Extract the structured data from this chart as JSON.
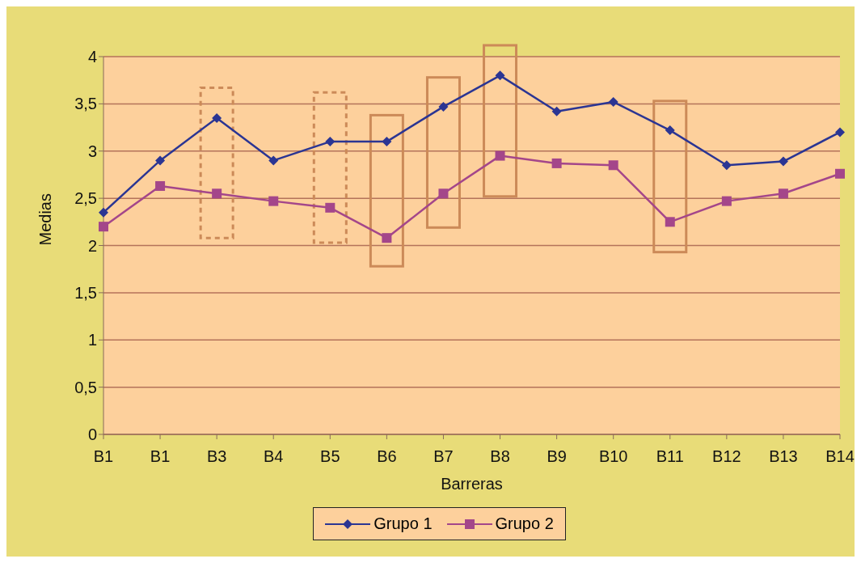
{
  "chart_data": {
    "type": "line",
    "xlabel": "Barreras",
    "ylabel": "Medias",
    "categories": [
      "B1",
      "B1",
      "B3",
      "B4",
      "B5",
      "B6",
      "B7",
      "B8",
      "B9",
      "B10",
      "B11",
      "B12",
      "B13",
      "B14"
    ],
    "series": [
      {
        "name": "Grupo 1",
        "color": "#2b3593",
        "marker": "diamond",
        "values": [
          2.35,
          2.9,
          3.35,
          2.9,
          3.1,
          3.1,
          3.47,
          3.8,
          3.42,
          3.52,
          3.22,
          2.85,
          2.89,
          3.2
        ]
      },
      {
        "name": "Grupo 2",
        "color": "#a4468a",
        "marker": "square",
        "values": [
          2.2,
          2.63,
          2.55,
          2.47,
          2.4,
          2.08,
          2.55,
          2.95,
          2.87,
          2.85,
          2.25,
          2.47,
          2.55,
          2.76
        ]
      }
    ],
    "ylim": [
      0,
      4
    ],
    "yticks": [
      0,
      {
        "value": 0.5,
        "label": "0,5"
      },
      1,
      {
        "value": 1.5,
        "label": "1,5"
      },
      2,
      {
        "value": 2.5,
        "label": "2,5"
      },
      3,
      {
        "value": 3.5,
        "label": "3,5"
      },
      4
    ],
    "grid": "y",
    "legend": "bottom",
    "line_style": "solid"
  }
}
